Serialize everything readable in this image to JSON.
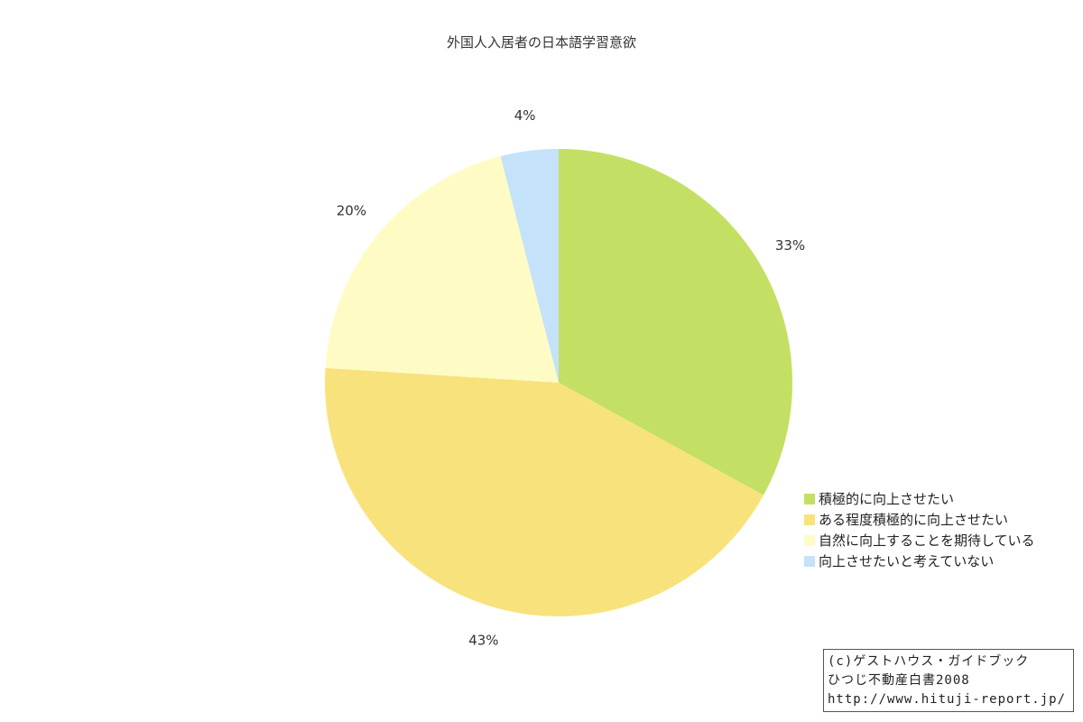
{
  "chart_data": {
    "type": "pie",
    "title": "外国人入居者の日本語学習意欲",
    "slices": [
      {
        "label": "積極的に向上させたい",
        "value": 33,
        "value_label": "33%",
        "color": "#c4e064"
      },
      {
        "label": "ある程度積極的に向上させたい",
        "value": 43,
        "value_label": "43%",
        "color": "#f8e27c"
      },
      {
        "label": "自然に向上することを期待している",
        "value": 20,
        "value_label": "20%",
        "color": "#fefcc4"
      },
      {
        "label": "向上させたいと考えていない",
        "value": 4,
        "value_label": "4%",
        "color": "#c4e2fa"
      }
    ],
    "start": "top",
    "direction": "clockwise",
    "legend_position": "right"
  },
  "credit": {
    "lines": [
      "(c)ゲストハウス・ガイドブック",
      "ひつじ不動産白書2008",
      "http://www.hituji-report.jp/"
    ]
  }
}
